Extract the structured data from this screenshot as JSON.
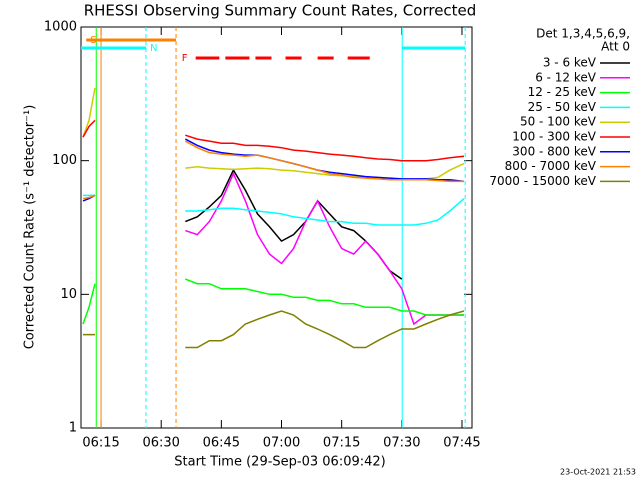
{
  "chart_data": {
    "type": "line",
    "title": "RHESSI Observing Summary Count Rates, Corrected",
    "y_label": "Corrected Count Rate (s⁻¹ detector⁻¹)",
    "x_label": "Start Time (29-Sep-03 06:09:42)",
    "footer": "23-Oct-2021 21:53",
    "legend_header": [
      "Det 1,3,4,5,6,9,",
      "Att 0"
    ],
    "log_y": true,
    "xlim": [
      370,
      467.5
    ],
    "ylim": [
      1,
      1000
    ],
    "yticks": [
      1,
      10,
      100,
      1000
    ],
    "xticks": [
      {
        "value": 375,
        "label": "06:15"
      },
      {
        "value": 390,
        "label": "06:30"
      },
      {
        "value": 405,
        "label": "06:45"
      },
      {
        "value": 420,
        "label": "07:00"
      },
      {
        "value": 435,
        "label": "07:15"
      },
      {
        "value": 450,
        "label": "07:30"
      },
      {
        "value": 465,
        "label": "07:45"
      }
    ],
    "x": [
      370.5,
      372,
      373.5,
      385,
      396,
      399,
      402,
      405,
      408,
      411,
      414,
      417,
      420,
      423,
      426,
      429,
      432,
      435,
      438,
      441,
      444,
      447,
      450,
      453,
      456,
      459,
      462,
      465.5
    ],
    "series": [
      {
        "name": "3 - 6 keV",
        "color": "#000000",
        "values": [
          null,
          null,
          null,
          null,
          35,
          38,
          45,
          55,
          85,
          60,
          40,
          32,
          25,
          28,
          35,
          50,
          40,
          32,
          30,
          25,
          20,
          15,
          13,
          null,
          null,
          null,
          null,
          null
        ]
      },
      {
        "name": "6 - 12 keV",
        "color": "#ff00ff",
        "values": [
          null,
          null,
          null,
          null,
          30,
          28,
          35,
          50,
          80,
          50,
          28,
          20,
          17,
          22,
          35,
          50,
          32,
          22,
          20,
          25,
          20,
          15,
          11,
          6,
          7,
          7,
          7,
          7
        ]
      },
      {
        "name": "12 - 25 keV",
        "color": "#00ff00",
        "values": [
          6,
          8,
          12,
          null,
          13,
          12,
          12,
          11,
          11,
          11,
          10.5,
          10,
          10,
          9.5,
          9.5,
          9,
          9,
          8.5,
          8.5,
          8,
          8,
          8,
          7.5,
          7.5,
          7,
          7,
          7,
          7
        ]
      },
      {
        "name": "25 - 50 keV",
        "color": "#00ffff",
        "values": [
          55,
          55,
          55,
          null,
          42,
          42,
          43,
          44,
          44,
          43,
          42,
          41,
          40,
          38,
          37,
          36,
          35,
          35,
          34,
          34,
          33,
          33,
          33,
          33,
          34,
          36,
          42,
          52
        ]
      },
      {
        "name": "50 - 100 keV",
        "color": "#cccc00",
        "values": [
          150,
          200,
          350,
          null,
          88,
          90,
          88,
          87,
          86,
          87,
          88,
          87,
          85,
          84,
          82,
          80,
          78,
          77,
          76,
          75,
          74,
          73,
          72,
          72,
          73,
          75,
          85,
          95
        ]
      },
      {
        "name": "100 - 300 keV",
        "color": "#ff0000",
        "values": [
          150,
          180,
          200,
          null,
          155,
          145,
          140,
          135,
          135,
          130,
          130,
          128,
          125,
          120,
          118,
          115,
          112,
          110,
          108,
          105,
          103,
          102,
          100,
          100,
          100,
          102,
          105,
          108
        ]
      },
      {
        "name": "300 - 800 keV",
        "color": "#0000ff",
        "values": [
          50,
          52,
          55,
          null,
          145,
          130,
          120,
          115,
          112,
          110,
          110,
          105,
          100,
          95,
          90,
          85,
          82,
          80,
          78,
          76,
          75,
          74,
          73,
          73,
          73,
          72,
          72,
          70
        ]
      },
      {
        "name": "800 - 7000 keV",
        "color": "#ff8000",
        "values": [
          52,
          53,
          55,
          null,
          140,
          125,
          115,
          112,
          110,
          108,
          110,
          105,
          100,
          95,
          90,
          85,
          80,
          78,
          75,
          74,
          73,
          72,
          72,
          72,
          72,
          71,
          70,
          70
        ]
      },
      {
        "name": "7000 - 15000 keV",
        "color": "#808000",
        "values": [
          5,
          5,
          5,
          null,
          4,
          4,
          4.5,
          4.5,
          5,
          6,
          6.5,
          7,
          7.5,
          7,
          6,
          5.5,
          5,
          4.5,
          4,
          4,
          4.5,
          5,
          5.5,
          5.5,
          6,
          6.5,
          7,
          7.5
        ]
      }
    ],
    "flags": [
      {
        "name": "S",
        "color": "#ff8000",
        "row": 0,
        "spans": [
          [
            371.3,
            393.7
          ]
        ]
      },
      {
        "name": "N",
        "color": "#00ffff",
        "row": 1,
        "spans": [
          [
            370,
            386.2
          ],
          [
            450.1,
            465.8
          ]
        ]
      },
      {
        "name": "F",
        "color": "#ff0000",
        "row": 2,
        "spans": [
          [
            398.6,
            404.5
          ],
          [
            406,
            412
          ],
          [
            413.5,
            417.5
          ],
          [
            421,
            425
          ],
          [
            429,
            433
          ],
          [
            436.5,
            442
          ]
        ]
      }
    ],
    "vlines": [
      {
        "x": 373.8,
        "color": "#00ff00",
        "dashed": false
      },
      {
        "x": 375,
        "color": "#ff8000",
        "dashed": false
      },
      {
        "x": 386.2,
        "color": "#00ffff",
        "dashed": true
      },
      {
        "x": 393.7,
        "color": "#ff8000",
        "dashed": true
      },
      {
        "x": 450.1,
        "color": "#00ffff",
        "dashed": false
      },
      {
        "x": 465.8,
        "color": "#00ffff",
        "dashed": true
      }
    ]
  }
}
